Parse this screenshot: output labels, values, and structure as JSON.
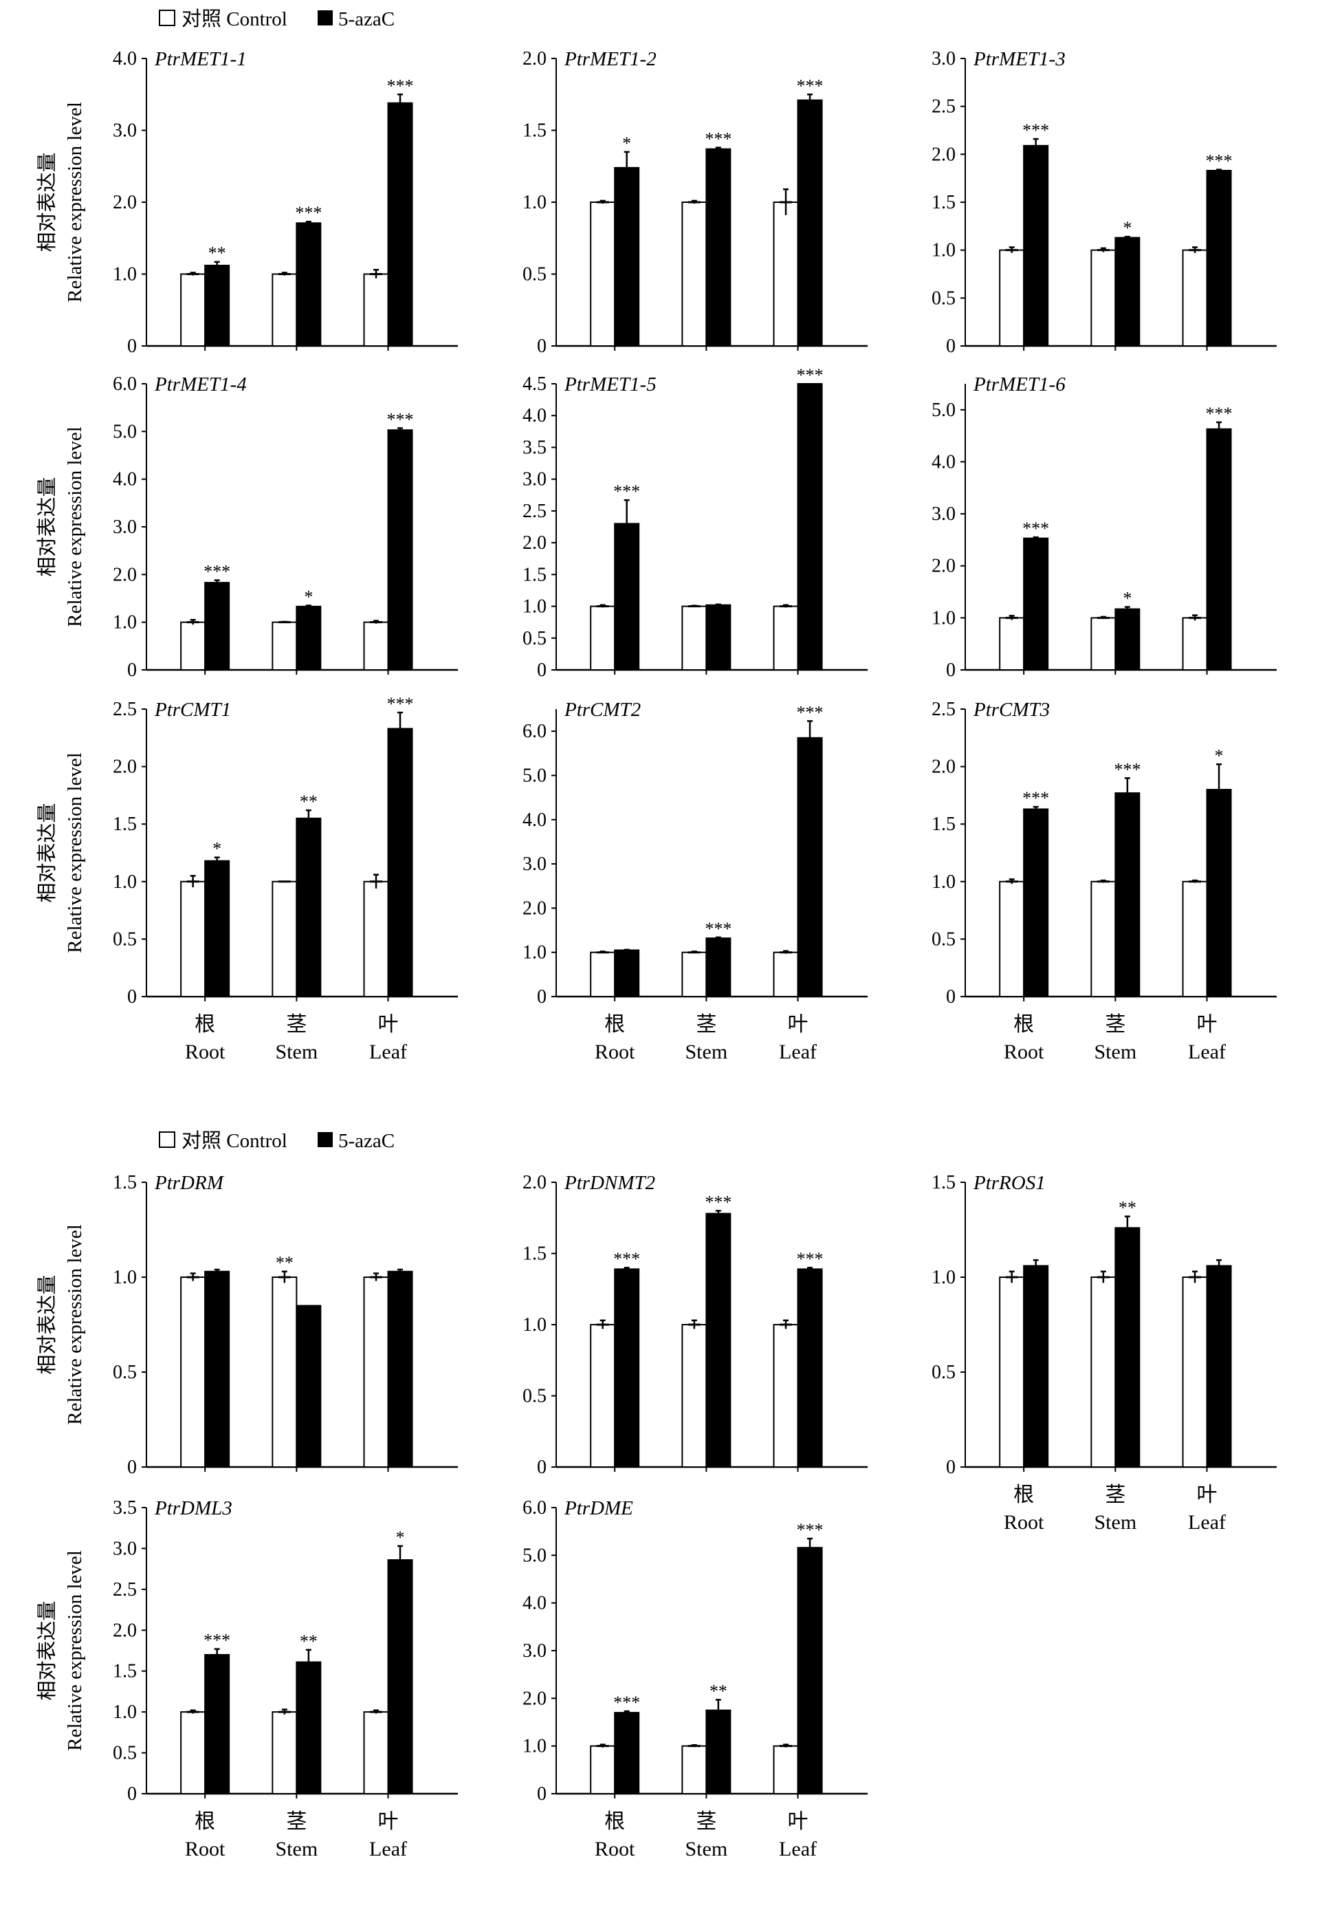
{
  "legend": {
    "control": "对照 Control",
    "treatment": "5-azaC"
  },
  "y_label_cn": "相对表达量",
  "y_label_en": "Relative expression level",
  "categories_cn": [
    "根",
    "茎",
    "叶"
  ],
  "categories_en": [
    "Root",
    "Stem",
    "Leaf"
  ],
  "colors": {
    "control": "#ffffff",
    "treatment": "#000000",
    "axis": "#000000"
  },
  "chart_data": [
    {
      "type": "bar",
      "title": "PtrMET1-1",
      "ylim": [
        0,
        4
      ],
      "ticks": [
        0,
        1,
        2,
        3,
        4
      ],
      "tick_labels": [
        "0",
        "1.0",
        "2.0",
        "3.0",
        "4.0"
      ],
      "categories": [
        "Root",
        "Stem",
        "Leaf"
      ],
      "series": [
        {
          "name": "对照 Control",
          "values": [
            1,
            1,
            1
          ],
          "errors": [
            0.02,
            0.02,
            0.06
          ]
        },
        {
          "name": "5-azaC",
          "values": [
            1.12,
            1.71,
            3.38
          ],
          "errors": [
            0.05,
            0.02,
            0.12
          ]
        }
      ],
      "significance": [
        "**",
        "***",
        "***"
      ]
    },
    {
      "type": "bar",
      "title": "PtrMET1-2",
      "ylim": [
        0,
        2
      ],
      "ticks": [
        0,
        0.5,
        1,
        1.5,
        2
      ],
      "tick_labels": [
        "0",
        "0.5",
        "1.0",
        "1.5",
        "2.0"
      ],
      "categories": [
        "Root",
        "Stem",
        "Leaf"
      ],
      "series": [
        {
          "name": "对照 Control",
          "values": [
            1,
            1,
            1
          ],
          "errors": [
            0.01,
            0.01,
            0.09
          ]
        },
        {
          "name": "5-azaC",
          "values": [
            1.24,
            1.37,
            1.71
          ],
          "errors": [
            0.11,
            0.01,
            0.04
          ]
        }
      ],
      "significance": [
        "*",
        "***",
        "***"
      ]
    },
    {
      "type": "bar",
      "title": "PtrMET1-3",
      "ylim": [
        0,
        3
      ],
      "ticks": [
        0,
        0.5,
        1,
        1.5,
        2,
        2.5,
        3
      ],
      "tick_labels": [
        "0",
        "0.5",
        "1.0",
        "1.5",
        "2.0",
        "2.5",
        "3.0"
      ],
      "categories": [
        "Root",
        "Stem",
        "Leaf"
      ],
      "series": [
        {
          "name": "对照 Control",
          "values": [
            1,
            1,
            1
          ],
          "errors": [
            0.03,
            0.02,
            0.03
          ]
        },
        {
          "name": "5-azaC",
          "values": [
            2.09,
            1.13,
            1.83
          ],
          "errors": [
            0.07,
            0.01,
            0.01
          ]
        }
      ],
      "significance": [
        "***",
        "*",
        "***"
      ]
    },
    {
      "type": "bar",
      "title": "PtrMET1-4",
      "ylim": [
        0,
        6
      ],
      "ticks": [
        0,
        1,
        2,
        3,
        4,
        5,
        6
      ],
      "tick_labels": [
        "0",
        "1.0",
        "2.0",
        "3.0",
        "4.0",
        "5.0",
        "6.0"
      ],
      "categories": [
        "Root",
        "Stem",
        "Leaf"
      ],
      "series": [
        {
          "name": "对照 Control",
          "values": [
            1,
            1,
            1
          ],
          "errors": [
            0.05,
            0.01,
            0.03
          ]
        },
        {
          "name": "5-azaC",
          "values": [
            1.83,
            1.33,
            5.03
          ],
          "errors": [
            0.05,
            0.02,
            0.04
          ]
        }
      ],
      "significance": [
        "***",
        "*",
        "***"
      ]
    },
    {
      "type": "bar",
      "title": "PtrMET1-5",
      "ylim": [
        0,
        4.5
      ],
      "ticks": [
        0,
        0.5,
        1,
        1.5,
        2,
        2.5,
        3,
        3.5,
        4,
        4.5
      ],
      "tick_labels": [
        "0",
        "0.5",
        "1.0",
        "1.5",
        "2.0",
        "2.5",
        "3.0",
        "3.5",
        "4.0",
        "4.5"
      ],
      "categories": [
        "Root",
        "Stem",
        "Leaf"
      ],
      "series": [
        {
          "name": "对照 Control",
          "values": [
            1,
            1,
            1
          ],
          "errors": [
            0.02,
            0.01,
            0.02
          ]
        },
        {
          "name": "5-azaC",
          "values": [
            2.3,
            1.02,
            4.5
          ],
          "errors": [
            0.37,
            0.01,
            0
          ]
        }
      ],
      "significance": [
        "***",
        "",
        "***"
      ]
    },
    {
      "type": "bar",
      "title": "PtrMET1-6",
      "ylim": [
        0,
        5.5
      ],
      "ticks": [
        0,
        1,
        2,
        3,
        4,
        5
      ],
      "tick_labels": [
        "0",
        "1.0",
        "2.0",
        "3.0",
        "4.0",
        "5.0"
      ],
      "categories": [
        "Root",
        "Stem",
        "Leaf"
      ],
      "series": [
        {
          "name": "对照 Control",
          "values": [
            1,
            1,
            1
          ],
          "errors": [
            0.04,
            0.02,
            0.05
          ]
        },
        {
          "name": "5-azaC",
          "values": [
            2.53,
            1.17,
            4.63
          ],
          "errors": [
            0.02,
            0.04,
            0.13
          ]
        }
      ],
      "significance": [
        "***",
        "*",
        "***"
      ]
    },
    {
      "type": "bar",
      "title": "PtrCMT1",
      "ylim": [
        0,
        2.5
      ],
      "ticks": [
        0,
        0.5,
        1,
        1.5,
        2,
        2.5
      ],
      "tick_labels": [
        "0",
        "0.5",
        "1.0",
        "1.5",
        "2.0",
        "2.5"
      ],
      "categories": [
        "Root",
        "Stem",
        "Leaf"
      ],
      "series": [
        {
          "name": "对照 Control",
          "values": [
            1,
            1,
            1
          ],
          "errors": [
            0.05,
            0,
            0.06
          ]
        },
        {
          "name": "5-azaC",
          "values": [
            1.18,
            1.55,
            2.33
          ],
          "errors": [
            0.03,
            0.07,
            0.14
          ]
        }
      ],
      "significance": [
        "*",
        "**",
        "***"
      ]
    },
    {
      "type": "bar",
      "title": "PtrCMT2",
      "ylim": [
        0,
        6.5
      ],
      "ticks": [
        0,
        1,
        2,
        3,
        4,
        5,
        6
      ],
      "tick_labels": [
        "0",
        "1.0",
        "2.0",
        "3.0",
        "4.0",
        "5.0",
        "6.0"
      ],
      "categories": [
        "Root",
        "Stem",
        "Leaf"
      ],
      "series": [
        {
          "name": "对照 Control",
          "values": [
            1,
            1,
            1
          ],
          "errors": [
            0.02,
            0.02,
            0.03
          ]
        },
        {
          "name": "5-azaC",
          "values": [
            1.05,
            1.32,
            5.85
          ],
          "errors": [
            0.01,
            0.02,
            0.38
          ]
        }
      ],
      "significance": [
        "",
        "***",
        "***"
      ]
    },
    {
      "type": "bar",
      "title": "PtrCMT3",
      "ylim": [
        0,
        2.5
      ],
      "ticks": [
        0,
        0.5,
        1,
        1.5,
        2,
        2.5
      ],
      "tick_labels": [
        "0",
        "0.5",
        "1.0",
        "1.5",
        "2.0",
        "2.5"
      ],
      "categories": [
        "Root",
        "Stem",
        "Leaf"
      ],
      "series": [
        {
          "name": "对照 Control",
          "values": [
            1,
            1,
            1
          ],
          "errors": [
            0.02,
            0.01,
            0.01
          ]
        },
        {
          "name": "5-azaC",
          "values": [
            1.63,
            1.77,
            1.8
          ],
          "errors": [
            0.02,
            0.13,
            0.22
          ]
        }
      ],
      "significance": [
        "***",
        "***",
        "*"
      ]
    },
    {
      "type": "bar",
      "title": "PtrDRM",
      "ylim": [
        0,
        1.5
      ],
      "ticks": [
        0,
        0.5,
        1,
        1.5
      ],
      "tick_labels": [
        "0",
        "0.5",
        "1.0",
        "1.5"
      ],
      "categories": [
        "Root",
        "Stem",
        "Leaf"
      ],
      "series": [
        {
          "name": "对照 Control",
          "values": [
            1,
            1,
            1
          ],
          "errors": [
            0.02,
            0.03,
            0.02
          ]
        },
        {
          "name": "5-azaC",
          "values": [
            1.03,
            0.85,
            1.03
          ],
          "errors": [
            0.01,
            0,
            0.01
          ]
        }
      ],
      "significance": [
        "",
        "**",
        ""
      ]
    },
    {
      "type": "bar",
      "title": "PtrDNMT2",
      "ylim": [
        0,
        2
      ],
      "ticks": [
        0,
        0.5,
        1,
        1.5,
        2
      ],
      "tick_labels": [
        "0",
        "0.5",
        "1.0",
        "1.5",
        "2.0"
      ],
      "categories": [
        "Root",
        "Stem",
        "Leaf"
      ],
      "series": [
        {
          "name": "对照 Control",
          "values": [
            1,
            1,
            1
          ],
          "errors": [
            0.03,
            0.03,
            0.03
          ]
        },
        {
          "name": "5-azaC",
          "values": [
            1.39,
            1.78,
            1.39
          ],
          "errors": [
            0.01,
            0.02,
            0.01
          ]
        }
      ],
      "significance": [
        "***",
        "***",
        "***"
      ]
    },
    {
      "type": "bar",
      "title": "PtrROS1",
      "ylim": [
        0,
        1.5
      ],
      "ticks": [
        0,
        0.5,
        1,
        1.5
      ],
      "tick_labels": [
        "0",
        "0.5",
        "1.0",
        "1.5"
      ],
      "categories": [
        "Root",
        "Stem",
        "Leaf"
      ],
      "series": [
        {
          "name": "对照 Control",
          "values": [
            1,
            1,
            1
          ],
          "errors": [
            0.03,
            0.03,
            0.03
          ]
        },
        {
          "name": "5-azaC",
          "values": [
            1.06,
            1.26,
            1.06
          ],
          "errors": [
            0.03,
            0.06,
            0.03
          ]
        }
      ],
      "significance": [
        "",
        "**",
        ""
      ]
    },
    {
      "type": "bar",
      "title": "PtrDML3",
      "ylim": [
        0,
        3.5
      ],
      "ticks": [
        0,
        0.5,
        1,
        1.5,
        2,
        2.5,
        3,
        3.5
      ],
      "tick_labels": [
        "0",
        "0.5",
        "1.0",
        "1.5",
        "2.0",
        "2.5",
        "3.0",
        "3.5"
      ],
      "categories": [
        "Root",
        "Stem",
        "Leaf"
      ],
      "series": [
        {
          "name": "对照 Control",
          "values": [
            1,
            1,
            1
          ],
          "errors": [
            0.02,
            0.03,
            0.02
          ]
        },
        {
          "name": "5-azaC",
          "values": [
            1.7,
            1.61,
            2.86
          ],
          "errors": [
            0.07,
            0.15,
            0.17
          ]
        }
      ],
      "significance": [
        "***",
        "**",
        "*"
      ]
    },
    {
      "type": "bar",
      "title": "PtrDME",
      "ylim": [
        0,
        6
      ],
      "ticks": [
        0,
        1,
        2,
        3,
        4,
        5,
        6
      ],
      "tick_labels": [
        "0",
        "1.0",
        "2.0",
        "3.0",
        "4.0",
        "5.0",
        "6.0"
      ],
      "categories": [
        "Root",
        "Stem",
        "Leaf"
      ],
      "series": [
        {
          "name": "对照 Control",
          "values": [
            1,
            1,
            1
          ],
          "errors": [
            0.03,
            0.02,
            0.03
          ]
        },
        {
          "name": "5-azaC",
          "values": [
            1.7,
            1.75,
            5.16
          ],
          "errors": [
            0.03,
            0.22,
            0.19
          ]
        }
      ],
      "significance": [
        "***",
        "**",
        "***"
      ]
    }
  ]
}
